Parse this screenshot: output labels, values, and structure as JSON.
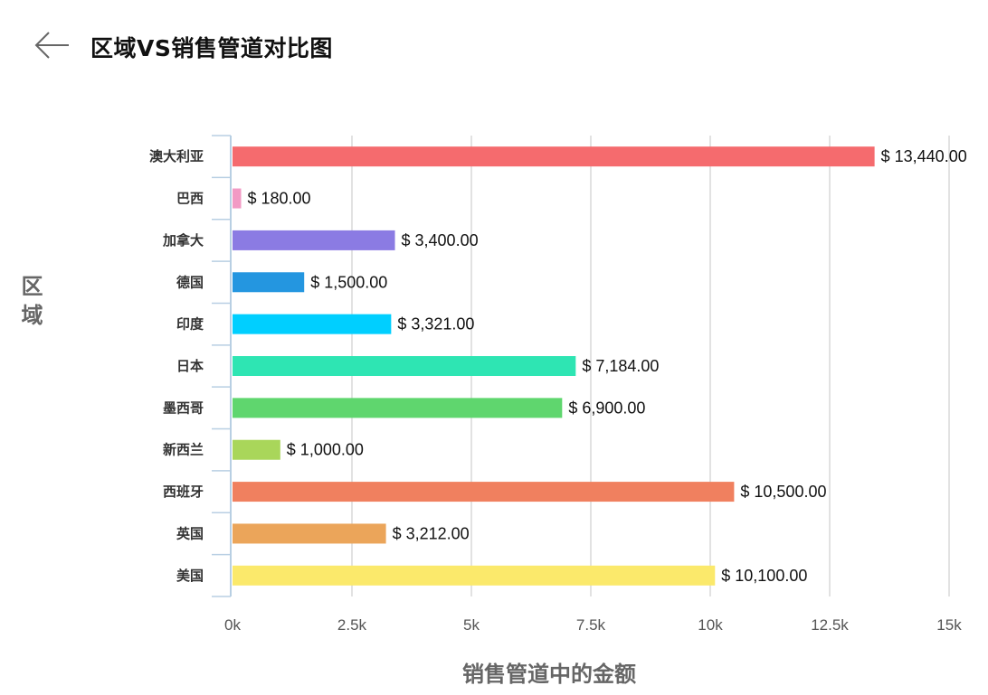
{
  "header": {
    "title": "区域VS销售管道对比图",
    "back_icon": "arrow-left-icon"
  },
  "chart_data": {
    "type": "bar",
    "orientation": "horizontal",
    "title": "区域VS销售管道对比图",
    "ylabel": "区域",
    "xlabel": "销售管道中的金额",
    "categories": [
      "澳大利亚",
      "巴西",
      "加拿大",
      "德国",
      "印度",
      "日本",
      "墨西哥",
      "新西兰",
      "西班牙",
      "英国",
      "美国"
    ],
    "values": [
      13440,
      180,
      3400,
      1500,
      3321,
      7184,
      6900,
      1000,
      10500,
      3212,
      10100
    ],
    "data_labels": [
      "$ 13,440.00",
      "$ 180.00",
      "$ 3,400.00",
      "$ 1,500.00",
      "$ 3,321.00",
      "$ 7,184.00",
      "$ 6,900.00",
      "$ 1,000.00",
      "$ 10,500.00",
      "$ 3,212.00",
      "$ 10,100.00"
    ],
    "colors": [
      "#f56b6e",
      "#f29ac4",
      "#8b7be3",
      "#2496e0",
      "#00cfff",
      "#2ee5b3",
      "#5fd66e",
      "#a9d65a",
      "#f0805f",
      "#eba55a",
      "#fbe96b"
    ],
    "xlim": [
      0,
      15000
    ],
    "x_ticks": [
      0,
      2500,
      5000,
      7500,
      10000,
      12500,
      15000
    ],
    "x_tick_labels": [
      "0k",
      "2.5k",
      "5k",
      "7.5k",
      "10k",
      "12.5k",
      "15k"
    ],
    "grid": true,
    "legend": "none"
  }
}
